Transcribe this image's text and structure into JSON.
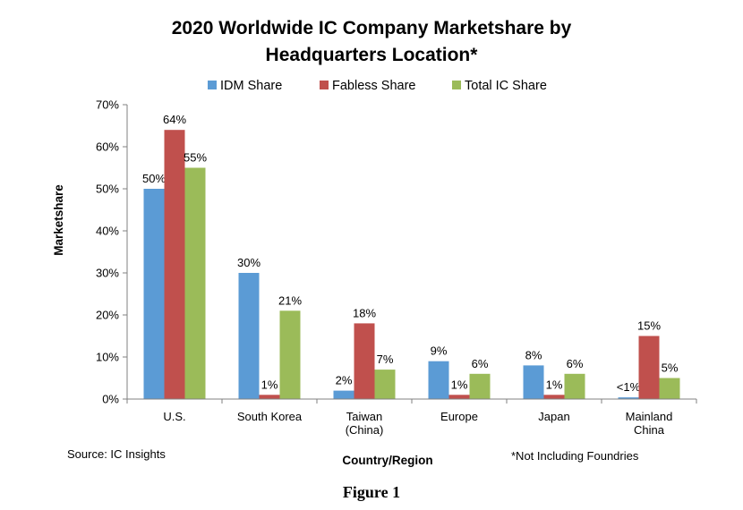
{
  "chart_data": {
    "type": "bar",
    "title_line1": "2020 Worldwide IC Company Marketshare by",
    "title_line2": "Headquarters Location*",
    "categories": [
      [
        "U.S."
      ],
      [
        "South Korea"
      ],
      [
        "Taiwan",
        "(China)"
      ],
      [
        "Europe"
      ],
      [
        "Japan"
      ],
      [
        "Mainland",
        "China"
      ]
    ],
    "series": [
      {
        "name": "IDM Share",
        "color": "#5b9bd5",
        "values": [
          50,
          30,
          2,
          9,
          8,
          0.4
        ],
        "labels": [
          "50%",
          "30%",
          "2%",
          "9%",
          "8%",
          "<1%"
        ]
      },
      {
        "name": "Fabless Share",
        "color": "#c0504d",
        "values": [
          64,
          1,
          18,
          1,
          1,
          15
        ],
        "labels": [
          "64%",
          "1%",
          "18%",
          "1%",
          "1%",
          "15%"
        ]
      },
      {
        "name": "Total IC Share",
        "color": "#9bbb59",
        "values": [
          55,
          21,
          7,
          6,
          6,
          5
        ],
        "labels": [
          "55%",
          "21%",
          "7%",
          "6%",
          "6%",
          "5%"
        ]
      }
    ],
    "xlabel": "Country/Region",
    "ylabel": "Marketshare",
    "ylim": [
      0,
      70
    ],
    "yticks": [
      "0%",
      "10%",
      "20%",
      "30%",
      "40%",
      "50%",
      "60%",
      "70%"
    ],
    "legend_position": "top",
    "grid": false
  },
  "source_note": "Source: IC Insights",
  "footnote": "*Not Including Foundries",
  "figure_caption": "Figure 1"
}
